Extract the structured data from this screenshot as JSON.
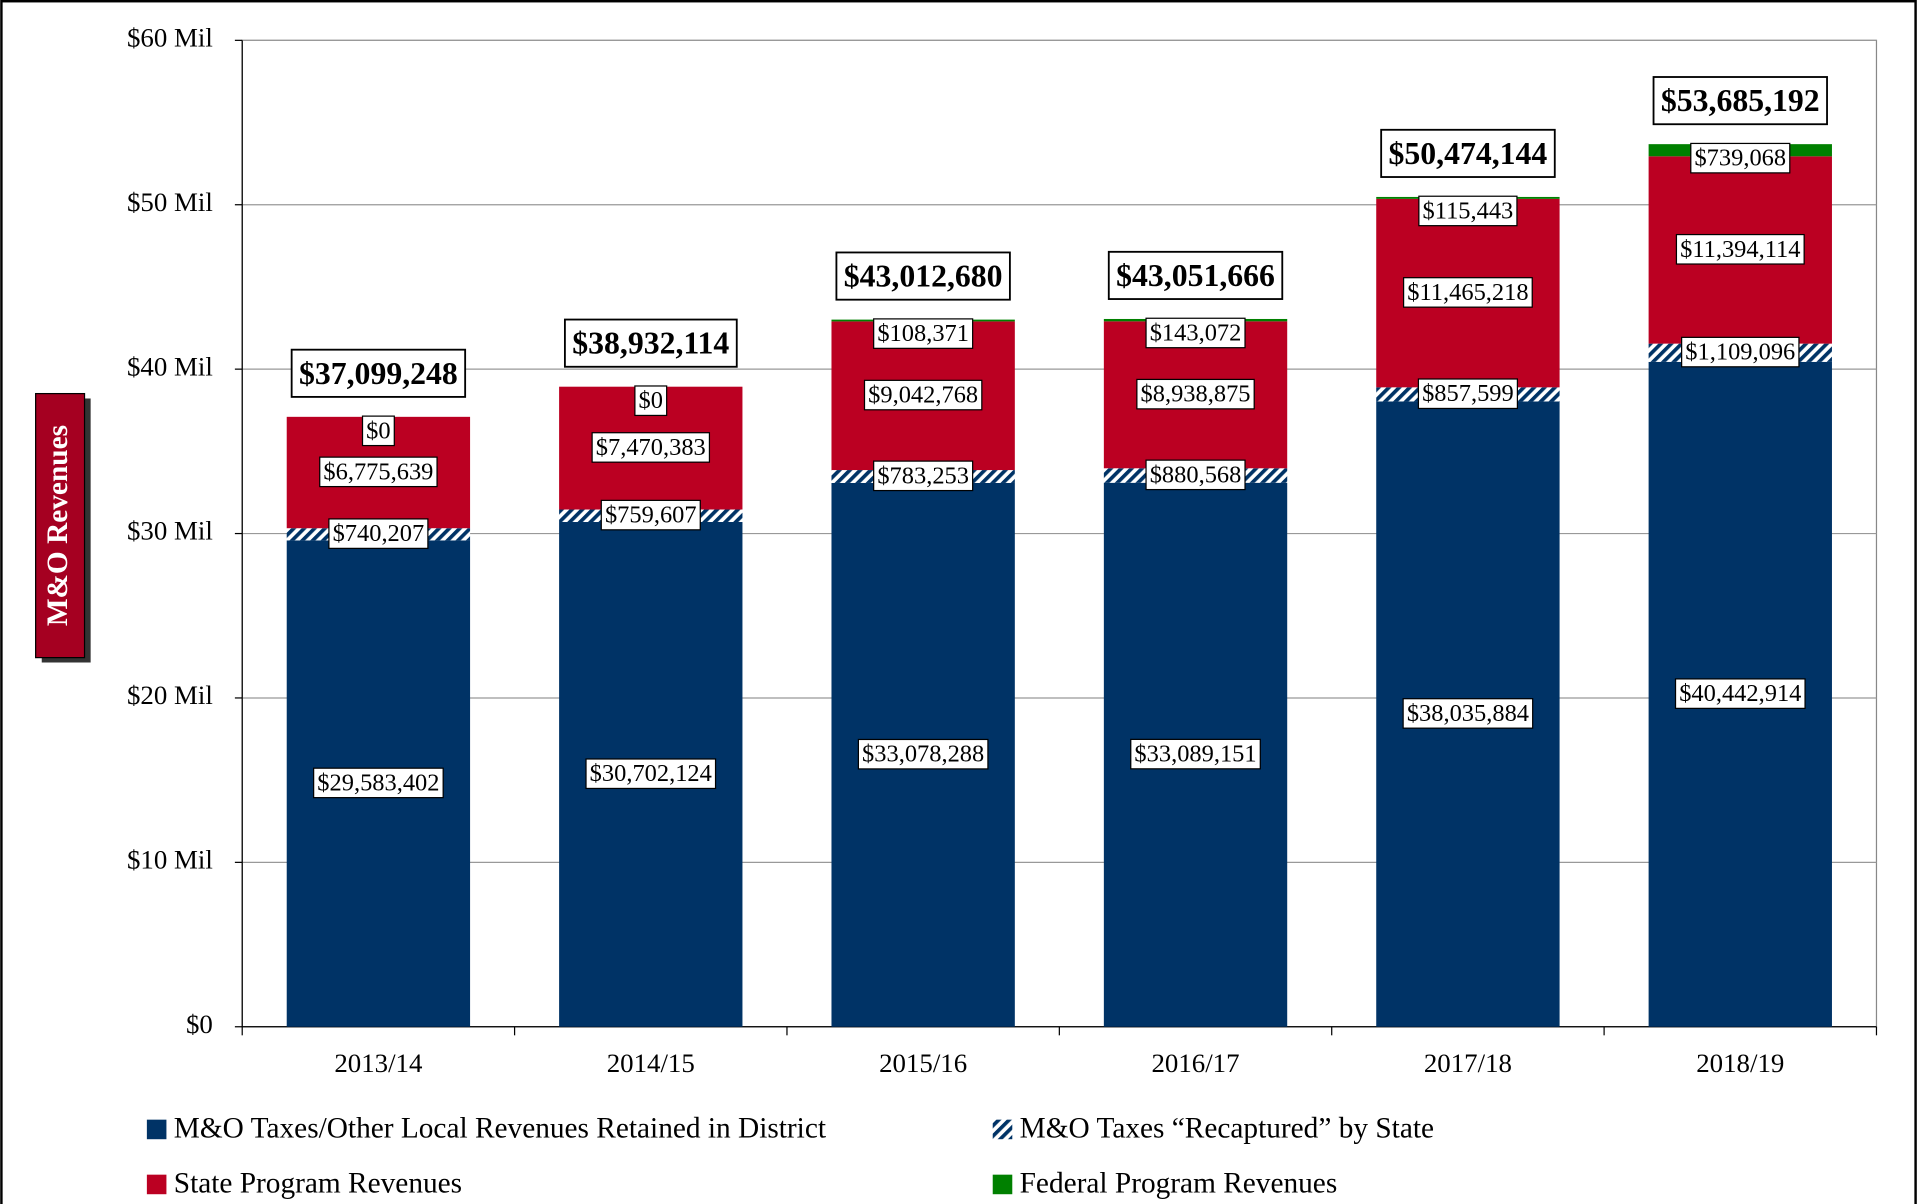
{
  "chart_data": {
    "type": "stacked_bar",
    "y_label": "M&O Revenues",
    "categories": [
      "2013/14",
      "2014/15",
      "2015/16",
      "2016/17",
      "2017/18",
      "2018/19"
    ],
    "series": [
      {
        "name": "M&O Taxes/Other Local Revenues Retained in District",
        "color": "#003366",
        "values": [
          29583402,
          30702124,
          33078288,
          33089151,
          38035884,
          40442914
        ],
        "value_labels": [
          "$29,583,402",
          "$30,702,124",
          "$33,078,288",
          "$33,089,151",
          "$38,035,884",
          "$40,442,914"
        ]
      },
      {
        "name": "M&O Taxes “Recaptured” by State",
        "color": "#003366",
        "pattern": "hatch",
        "values": [
          740207,
          759607,
          783253,
          880568,
          857599,
          1109096
        ],
        "value_labels": [
          "$740,207",
          "$759,607",
          "$783,253",
          "$880,568",
          "$857,599",
          "$1,109,096"
        ]
      },
      {
        "name": "State Program Revenues",
        "color": "#bb0022",
        "values": [
          6775639,
          7470383,
          9042768,
          8938875,
          11465218,
          11394114
        ],
        "value_labels": [
          "$6,775,639",
          "$7,470,383",
          "$9,042,768",
          "$8,938,875",
          "$11,465,218",
          "$11,394,114"
        ]
      },
      {
        "name": "Federal Program Revenues",
        "color": "#008000",
        "values": [
          0,
          0,
          108371,
          143072,
          115443,
          739068
        ],
        "value_labels": [
          "$0",
          "$0",
          "$108,371",
          "$143,072",
          "$115,443",
          "$739,068"
        ]
      }
    ],
    "totals": [
      37099248,
      38932114,
      43012680,
      43051666,
      50474144,
      53685192
    ],
    "total_labels": [
      "$37,099,248",
      "$38,932,114",
      "$43,012,680",
      "$43,051,666",
      "$50,474,144",
      "$53,685,192"
    ],
    "ylim": [
      0,
      60000000
    ],
    "yticks": [
      {
        "value": 0,
        "label": "$0"
      },
      {
        "value": 10000000,
        "label": "$10 Mil"
      },
      {
        "value": 20000000,
        "label": "$20 Mil"
      },
      {
        "value": 30000000,
        "label": "$30 Mil"
      },
      {
        "value": 40000000,
        "label": "$40 Mil"
      },
      {
        "value": 50000000,
        "label": "$50 Mil"
      },
      {
        "value": 60000000,
        "label": "$60 Mil"
      }
    ],
    "grid": true
  }
}
